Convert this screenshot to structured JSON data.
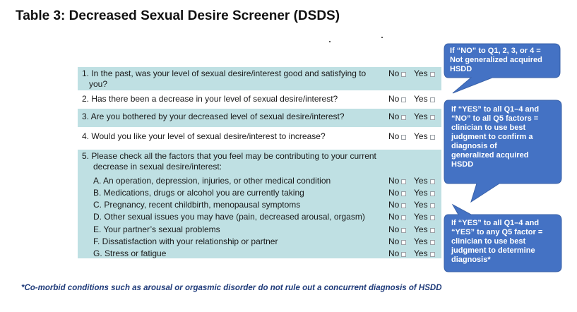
{
  "title": "Table 3: Decreased Sexual Desire Screener (DSDS)",
  "no_label": "No",
  "yes_label": "Yes",
  "questions": [
    {
      "line1": "1. In the past, was your level of sexual desire/interest good and satisfying to",
      "line2": "you?"
    },
    {
      "line1": "2. Has there been a decrease in your level of sexual desire/interest?"
    },
    {
      "line1": "3. Are you bothered by your decreased level of sexual desire/interest?"
    },
    {
      "line1": "4. Would you like your level of sexual desire/interest to increase?"
    },
    {
      "line1": "5. Please check all the factors that you feel may be contributing to your current",
      "line2": "decrease in sexual desire/interest:"
    }
  ],
  "factors": [
    "A. An operation, depression, injuries, or other medical condition",
    "B. Medications, drugs or alcohol you are currently taking",
    "C. Pregnancy, recent childbirth, menopausal symptoms",
    "D. Other sexual issues you may have (pain, decreased arousal, orgasm)",
    "E. Your partner’s sexual problems",
    "F. Dissatisfaction with your relationship or partner",
    "G. Stress or fatigue"
  ],
  "callouts": [
    {
      "lines": [
        "If “NO” to Q1, 2, 3, or 4 =",
        "Not generalized acquired",
        "HSDD"
      ]
    },
    {
      "lines": [
        "If “YES” to all Q1–4 and",
        "“NO” to all Q5 factors =",
        "clinician to use best",
        "judgment to confirm a",
        "diagnosis of",
        "generalized acquired",
        "HSDD"
      ]
    },
    {
      "lines": [
        "If “YES” to all Q1–4 and",
        "“YES” to any Q5 factor =",
        "clinician to use best",
        "judgment to determine",
        "diagnosis*"
      ]
    }
  ],
  "colors": {
    "teal_row": "#bfe0e3",
    "callout_fill": "#4472c4",
    "footnote": "#1f3b7a"
  },
  "footnote": "*Co-morbid conditions such as arousal or orgasmic disorder do not rule out a concurrent diagnosis of HSDD"
}
